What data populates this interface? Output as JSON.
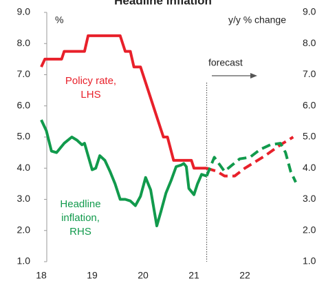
{
  "chart_data": {
    "type": "line",
    "title": "Headline inflation",
    "y_label": "%",
    "y2_label": "y/y % change",
    "forecast_label": "forecast",
    "forecast_start": 21.25,
    "xlim": [
      18,
      23
    ],
    "xticks": [
      18,
      19,
      20,
      21,
      22
    ],
    "ylim": [
      1,
      9
    ],
    "yticks": [
      {
        "value": 1,
        "label": "1.0"
      },
      {
        "value": 2,
        "label": "2.0"
      },
      {
        "value": 3,
        "label": "3.0"
      },
      {
        "value": 4,
        "label": "4.0"
      },
      {
        "value": 5,
        "label": "5.0"
      },
      {
        "value": 6,
        "label": "6.0"
      },
      {
        "value": 7,
        "label": "7.0"
      },
      {
        "value": 8,
        "label": "8.0"
      },
      {
        "value": 9,
        "label": "9.0"
      }
    ],
    "y2lim": [
      1,
      9
    ],
    "y2ticks": [
      {
        "value": 1,
        "label": "1.0"
      },
      {
        "value": 2,
        "label": "2.0"
      },
      {
        "value": 3,
        "label": "3.0"
      },
      {
        "value": 4,
        "label": "4.0"
      },
      {
        "value": 5,
        "label": "5.0"
      },
      {
        "value": 6,
        "label": "6.0"
      },
      {
        "value": 7,
        "label": "7.0"
      },
      {
        "value": 8,
        "label": "8.0"
      },
      {
        "value": 9,
        "label": "9.0"
      }
    ],
    "series": [
      {
        "name": [
          "Policy rate,",
          "LHS"
        ],
        "color": "#e8202a",
        "axis": "y",
        "x": [
          18,
          18.07,
          18.4,
          18.45,
          18.85,
          18.92,
          19.55,
          19.65,
          19.75,
          19.82,
          19.95,
          20.1,
          20.25,
          20.4,
          20.48,
          20.6,
          20.95,
          21.0,
          21.25,
          21.45,
          21.6,
          21.8,
          22.0,
          22.4,
          22.7,
          22.95
        ],
        "values": [
          7.25,
          7.5,
          7.5,
          7.75,
          7.75,
          8.25,
          8.25,
          7.75,
          7.75,
          7.25,
          7.25,
          6.5,
          5.75,
          5.0,
          5.0,
          4.25,
          4.25,
          4.0,
          4.0,
          3.9,
          3.75,
          3.75,
          4.0,
          4.4,
          4.75,
          5.0
        ]
      },
      {
        "name": [
          "Headline",
          "inflation,",
          "RHS"
        ],
        "color": "#119a4c",
        "axis": "y2",
        "x": [
          18,
          18.1,
          18.2,
          18.3,
          18.45,
          18.6,
          18.7,
          18.8,
          18.85,
          19.0,
          19.07,
          19.15,
          19.25,
          19.35,
          19.45,
          19.55,
          19.65,
          19.75,
          19.85,
          19.95,
          20.05,
          20.15,
          20.27,
          20.35,
          20.45,
          20.55,
          20.65,
          20.75,
          20.8,
          20.85,
          20.9,
          21.0,
          21.07,
          21.15,
          21.25,
          21.4,
          21.6,
          21.75,
          21.9,
          22.1,
          22.3,
          22.5,
          22.7,
          22.8,
          22.9,
          23.0
        ],
        "values": [
          5.55,
          5.2,
          4.55,
          4.5,
          4.8,
          5.0,
          4.9,
          4.75,
          4.8,
          3.95,
          4.0,
          4.4,
          4.25,
          3.9,
          3.5,
          3.0,
          3.0,
          2.95,
          2.8,
          3.1,
          3.7,
          3.3,
          2.15,
          2.6,
          3.2,
          3.6,
          4.05,
          4.1,
          4.15,
          4.05,
          3.35,
          3.15,
          3.5,
          3.8,
          3.75,
          4.35,
          3.9,
          4.1,
          4.3,
          4.35,
          4.6,
          4.75,
          4.8,
          4.5,
          3.9,
          3.55
        ]
      }
    ]
  }
}
